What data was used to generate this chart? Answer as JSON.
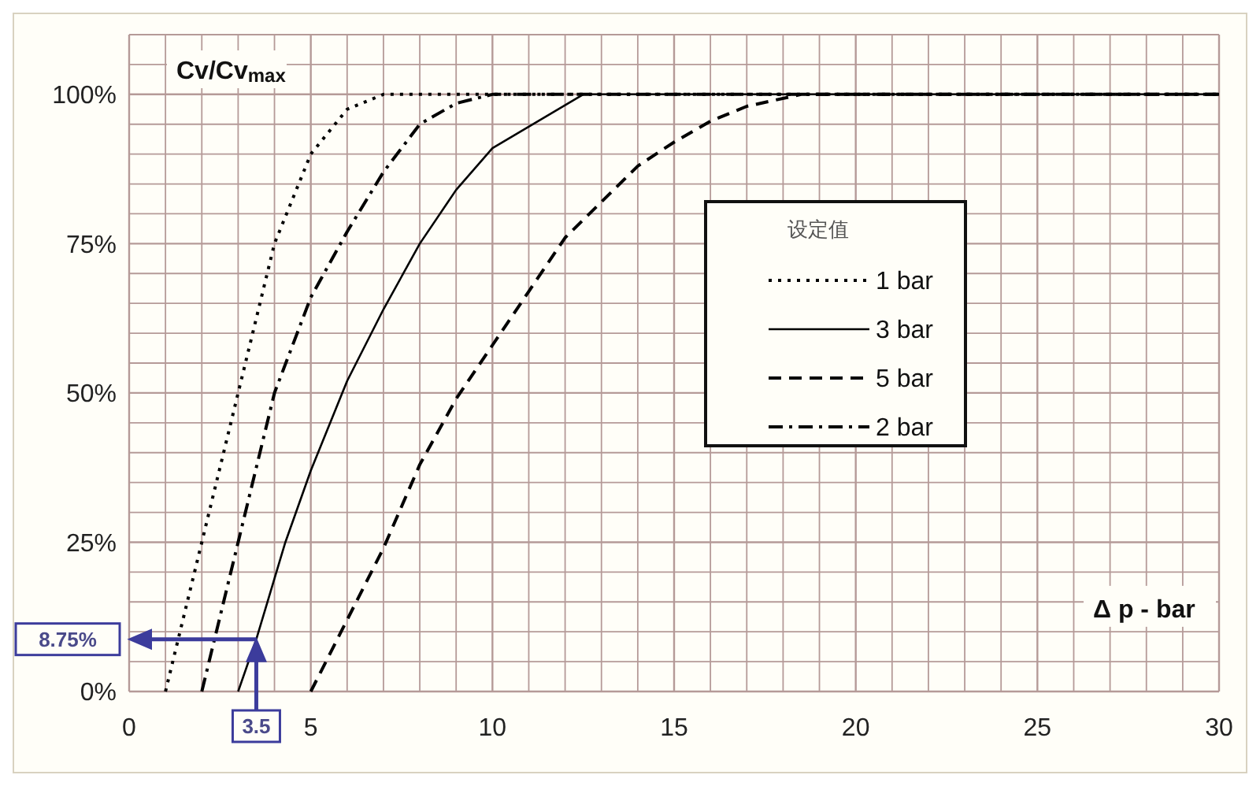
{
  "chart_data": {
    "type": "line",
    "xlabel": "Δ p - bar",
    "ylabel": "Cv/Cv$_{max}$",
    "legend_title": "设定值",
    "legend": "right",
    "grid": true,
    "xlim": [
      0,
      30
    ],
    "ylim": [
      0,
      110
    ],
    "xticks": [
      0,
      {
        "value": 1,
        "label": null
      },
      {
        "value": 2,
        "label": null
      },
      {
        "value": 3,
        "label": null
      },
      {
        "value": 4,
        "label": null
      },
      5,
      {
        "value": 6,
        "label": null
      },
      {
        "value": 7,
        "label": null
      },
      {
        "value": 8,
        "label": null
      },
      {
        "value": 9,
        "label": null
      },
      10,
      {
        "value": 11,
        "label": null
      },
      {
        "value": 12,
        "label": null
      },
      {
        "value": 13,
        "label": null
      },
      {
        "value": 14,
        "label": null
      },
      15,
      {
        "value": 16,
        "label": null
      },
      {
        "value": 17,
        "label": null
      },
      {
        "value": 18,
        "label": null
      },
      {
        "value": 19,
        "label": null
      },
      20,
      {
        "value": 21,
        "label": null
      },
      {
        "value": 22,
        "label": null
      },
      {
        "value": 23,
        "label": null
      },
      {
        "value": 24,
        "label": null
      },
      25,
      {
        "value": 26,
        "label": null
      },
      {
        "value": 27,
        "label": null
      },
      {
        "value": 28,
        "label": null
      },
      {
        "value": 29,
        "label": null
      },
      30
    ],
    "yticks": [
      {
        "value": 0,
        "label": "0%"
      },
      {
        "value": 5,
        "label": null
      },
      {
        "value": 10,
        "label": null
      },
      {
        "value": 15,
        "label": null
      },
      {
        "value": 20,
        "label": null
      },
      {
        "value": 25,
        "label": "25%"
      },
      {
        "value": 30,
        "label": null
      },
      {
        "value": 35,
        "label": null
      },
      {
        "value": 40,
        "label": null
      },
      {
        "value": 45,
        "label": null
      },
      {
        "value": 50,
        "label": "50%"
      },
      {
        "value": 55,
        "label": null
      },
      {
        "value": 60,
        "label": null
      },
      {
        "value": 65,
        "label": null
      },
      {
        "value": 70,
        "label": null
      },
      {
        "value": 75,
        "label": "75%"
      },
      {
        "value": 80,
        "label": null
      },
      {
        "value": 85,
        "label": null
      },
      {
        "value": 90,
        "label": null
      },
      {
        "value": 95,
        "label": null
      },
      {
        "value": 100,
        "label": "100%"
      },
      {
        "value": 105,
        "label": null
      },
      {
        "value": 110,
        "label": null
      }
    ],
    "series": [
      {
        "name": "1 bar",
        "color": "#000000",
        "line_style": "dotted",
        "x": [
          1,
          2,
          3,
          4,
          5,
          6,
          7,
          30
        ],
        "values": [
          0,
          25,
          50,
          75,
          90,
          97.5,
          100,
          100
        ]
      },
      {
        "name": "3 bar",
        "color": "#000000",
        "line_style": "solid",
        "x": [
          3,
          3.5,
          4.3,
          5,
          6,
          7,
          8,
          9,
          10,
          12.5,
          30
        ],
        "values": [
          0,
          8.75,
          25,
          37,
          52,
          64,
          75,
          84,
          91,
          100,
          100
        ]
      },
      {
        "name": "5 bar",
        "color": "#000000",
        "line_style": "dashed",
        "x": [
          5,
          6,
          7,
          8,
          9,
          10,
          11,
          12,
          13,
          14,
          15,
          16,
          17,
          18.5,
          30
        ],
        "values": [
          0,
          12,
          24,
          38,
          49,
          58,
          67,
          76,
          82,
          88,
          92,
          95.5,
          98,
          100,
          100
        ]
      },
      {
        "name": "2 bar",
        "color": "#000000",
        "line_style": "dashdot",
        "x": [
          2,
          3,
          4,
          5,
          6,
          7,
          8,
          9,
          10,
          30
        ],
        "values": [
          0,
          25,
          50,
          66,
          77,
          87,
          95,
          98.5,
          100,
          100
        ]
      }
    ],
    "ref_lines": [
      {
        "axis": "y",
        "value": 8.75,
        "label": "8.75%",
        "color": "#3c3c9c"
      },
      {
        "axis": "x",
        "value": 3.5,
        "label": "3.5",
        "color": "#3c3c9c"
      }
    ]
  }
}
